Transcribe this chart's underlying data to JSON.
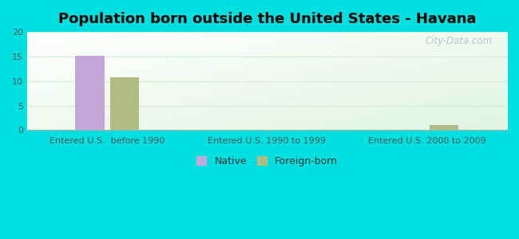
{
  "title": "Population born outside the United States - Havana",
  "groups": [
    "Entered U.S.  before 1990",
    "Entered U.S. 1990 to 1999",
    "Entered U.S. 2000 to 2009"
  ],
  "native_values": [
    15.2,
    0,
    0
  ],
  "foreign_values": [
    10.8,
    0,
    1.0
  ],
  "native_color": "#c2a8d8",
  "foreign_color": "#b0bc84",
  "ylim": [
    0,
    20
  ],
  "yticks": [
    0,
    5,
    10,
    15,
    20
  ],
  "bar_width": 0.18,
  "bg_color": "#00e0e0",
  "watermark": "City-Data.com",
  "legend_native": "Native",
  "legend_foreign": "Foreign-born",
  "title_fontsize": 13,
  "tick_label_fontsize": 8,
  "legend_fontsize": 9,
  "grid_color": "#d8eed8",
  "plot_bg_colors": [
    "#eaf6ea",
    "#ffffff"
  ]
}
